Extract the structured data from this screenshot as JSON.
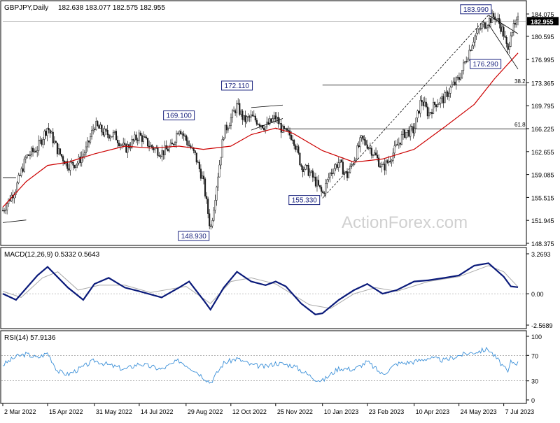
{
  "symbol_label": "GBPJPY,Daily",
  "ohlc_label": "182.638 183.077 182.575 182.955",
  "watermark": "ActionForex.com",
  "colors": {
    "candle": "#1a1a1a",
    "sma": "#cc0000",
    "macd": "#0a1a7a",
    "signal": "#aaaaaa",
    "rsi": "#3a8fd8",
    "label_border": "#1a237e",
    "label_text": "#1a237e"
  },
  "chart_data": [
    {
      "type": "candlestick",
      "panel": "price",
      "price_axis_ticks": [
        "184.075",
        "180.595",
        "176.995",
        "173.365",
        "169.795",
        "166.225",
        "162.655",
        "159.085",
        "155.515",
        "151.945",
        "148.375"
      ],
      "last_price": "182.955",
      "ylim": [
        148.375,
        184.075
      ],
      "close_path": [
        [
          "2 Mar 2022",
          153.5
        ],
        [
          "15 Mar 2022",
          157.0
        ],
        [
          "25 Mar 2022",
          161.8
        ],
        [
          "5 Apr 2022",
          163.2
        ],
        [
          "15 Apr 2022",
          166.5
        ],
        [
          "25 Apr 2022",
          162.8
        ],
        [
          "5 May 2022",
          160.5
        ],
        [
          "15 May 2022",
          161.0
        ],
        [
          "23 May 2022",
          163.0
        ],
        [
          "31 May 2022",
          166.8
        ],
        [
          "10 Jun 2022",
          165.5
        ],
        [
          "20 Jun 2022",
          165.2
        ],
        [
          "30 Jun 2022",
          163.0
        ],
        [
          "14 Jul 2022",
          165.2
        ],
        [
          "25 Jul 2022",
          163.5
        ],
        [
          "5 Aug 2022",
          162.5
        ],
        [
          "15 Aug 2022",
          163.4
        ],
        [
          "22 Aug 2022",
          166.5
        ],
        [
          "29 Aug 2022",
          164.5
        ],
        [
          "7 Sep 2022",
          162.0
        ],
        [
          "15 Sep 2022",
          158.0
        ],
        [
          "22 Sep 2022",
          150.5
        ],
        [
          "28 Sep 2022",
          157.5
        ],
        [
          "5 Oct 2022",
          165.5
        ],
        [
          "12 Oct 2022",
          167.8
        ],
        [
          "18 Oct 2022",
          169.8
        ],
        [
          "25 Oct 2022",
          167.5
        ],
        [
          "1 Nov 2022",
          168.0
        ],
        [
          "8 Nov 2022",
          167.3
        ],
        [
          "15 Nov 2022",
          166.5
        ],
        [
          "25 Nov 2022",
          168.0
        ],
        [
          "2 Dec 2022",
          165.8
        ],
        [
          "12 Dec 2022",
          165.0
        ],
        [
          "20 Dec 2022",
          160.5
        ],
        [
          "28 Dec 2022",
          159.5
        ],
        [
          "3 Jan 2023",
          158.0
        ],
        [
          "10 Jan 2023",
          156.0
        ],
        [
          "18 Jan 2023",
          159.5
        ],
        [
          "26 Jan 2023",
          161.0
        ],
        [
          "3 Feb 2023",
          158.8
        ],
        [
          "10 Feb 2023",
          161.5
        ],
        [
          "17 Feb 2023",
          164.5
        ],
        [
          "23 Feb 2023",
          163.8
        ],
        [
          "3 Mar 2023",
          162.0
        ],
        [
          "10 Mar 2023",
          160.0
        ],
        [
          "17 Mar 2023",
          161.5
        ],
        [
          "24 Mar 2023",
          163.5
        ],
        [
          "31 Mar 2023",
          165.5
        ],
        [
          "10 Apr 2023",
          166.0
        ],
        [
          "17 Apr 2023",
          170.8
        ],
        [
          "24 Apr 2023",
          168.5
        ],
        [
          "1 May 2023",
          170.2
        ],
        [
          "10 May 2023",
          171.0
        ],
        [
          "17 May 2023",
          172.8
        ],
        [
          "24 May 2023",
          174.0
        ],
        [
          "1 Jun 2023",
          177.5
        ],
        [
          "8 Jun 2023",
          180.5
        ],
        [
          "15 Jun 2023",
          182.0
        ],
        [
          "22 Jun 2023",
          183.0
        ],
        [
          "28 Jun 2023",
          183.8
        ],
        [
          "3 Jul 2023",
          182.5
        ],
        [
          "7 Jul 2023",
          181.0
        ],
        [
          "11 Jul 2023",
          178.0
        ],
        [
          "14 Jul 2023",
          181.5
        ],
        [
          "18 Jul 2023",
          182.0
        ],
        [
          "21 Jul 2023",
          182.955
        ]
      ],
      "sma_path": [
        [
          "2 Mar 2022",
          154.0
        ],
        [
          "25 Mar 2022",
          158.0
        ],
        [
          "15 Apr 2022",
          160.5
        ],
        [
          "5 May 2022",
          161.0
        ],
        [
          "31 May 2022",
          162.3
        ],
        [
          "30 Jun 2022",
          163.5
        ],
        [
          "25 Jul 2022",
          163.2
        ],
        [
          "22 Aug 2022",
          163.5
        ],
        [
          "15 Sep 2022",
          163.0
        ],
        [
          "12 Oct 2022",
          163.5
        ],
        [
          "1 Nov 2022",
          165.3
        ],
        [
          "25 Nov 2022",
          166.3
        ],
        [
          "12 Dec 2022",
          165.5
        ],
        [
          "10 Jan 2023",
          162.8
        ],
        [
          "10 Feb 2023",
          161.0
        ],
        [
          "10 Mar 2023",
          161.5
        ],
        [
          "10 Apr 2023",
          163.0
        ],
        [
          "10 May 2023",
          166.5
        ],
        [
          "8 Jun 2023",
          170.0
        ],
        [
          "28 Jun 2023",
          174.0
        ],
        [
          "21 Jul 2023",
          178.0
        ]
      ],
      "annotations": [
        {
          "label": "183.990",
          "date": "22 Jun 2023",
          "price": 183.99
        },
        {
          "label": "176.290",
          "date": "7 Jul 2023",
          "price": 176.29
        },
        {
          "label": "172.110",
          "date": "18 Oct 2022",
          "price": 172.11
        },
        {
          "label": "169.100",
          "date": "22 Aug 2022",
          "price": 169.1
        },
        {
          "label": "155.330",
          "date": "10 Jan 2023",
          "price": 155.33
        },
        {
          "label": "148.930",
          "date": "22 Sep 2022",
          "price": 148.93
        }
      ],
      "fib_levels": [
        {
          "label": "38.2",
          "price": 173.0,
          "from": "10 Jan 2023"
        },
        {
          "label": "61.8",
          "price": 166.2,
          "from": "25 Nov 2022"
        }
      ]
    },
    {
      "type": "line",
      "panel": "macd",
      "label": "MACD(12,26,9) 0.5332 0.5643",
      "axis_ticks": [
        "3.2693",
        "0.00",
        "-2.5689"
      ],
      "ylim": [
        -2.5689,
        3.2693
      ],
      "macd_path": [
        [
          "2 Mar 2022",
          0.0
        ],
        [
          "15 Mar 2022",
          -0.5
        ],
        [
          "5 Apr 2022",
          1.5
        ],
        [
          "15 Apr 2022",
          2.2
        ],
        [
          "5 May 2022",
          0.5
        ],
        [
          "20 May 2022",
          -0.5
        ],
        [
          "31 May 2022",
          0.8
        ],
        [
          "14 Jun 2022",
          1.3
        ],
        [
          "30 Jun 2022",
          0.5
        ],
        [
          "14 Jul 2022",
          0.2
        ],
        [
          "5 Aug 2022",
          -0.3
        ],
        [
          "22 Aug 2022",
          0.5
        ],
        [
          "1 Sep 2022",
          1.0
        ],
        [
          "15 Sep 2022",
          -0.5
        ],
        [
          "22 Sep 2022",
          -1.3
        ],
        [
          "5 Oct 2022",
          0.5
        ],
        [
          "18 Oct 2022",
          1.8
        ],
        [
          "1 Nov 2022",
          1.0
        ],
        [
          "15 Nov 2022",
          0.7
        ],
        [
          "25 Nov 2022",
          1.0
        ],
        [
          "5 Dec 2022",
          0.6
        ],
        [
          "20 Dec 2022",
          -0.8
        ],
        [
          "3 Jan 2023",
          -1.7
        ],
        [
          "10 Jan 2023",
          -1.6
        ],
        [
          "26 Jan 2023",
          -0.5
        ],
        [
          "10 Feb 2023",
          0.3
        ],
        [
          "23 Feb 2023",
          0.8
        ],
        [
          "10 Mar 2023",
          0.0
        ],
        [
          "24 Mar 2023",
          0.3
        ],
        [
          "10 Apr 2023",
          1.0
        ],
        [
          "24 Apr 2023",
          1.1
        ],
        [
          "10 May 2023",
          1.3
        ],
        [
          "24 May 2023",
          1.5
        ],
        [
          "8 Jun 2023",
          2.3
        ],
        [
          "22 Jun 2023",
          2.5
        ],
        [
          "7 Jul 2023",
          1.4
        ],
        [
          "14 Jul 2023",
          0.6
        ],
        [
          "21 Jul 2023",
          0.5332
        ]
      ],
      "signal_path": [
        [
          "2 Mar 2022",
          0.2
        ],
        [
          "20 Mar 2022",
          -0.3
        ],
        [
          "10 Apr 2022",
          1.3
        ],
        [
          "25 Apr 2022",
          1.8
        ],
        [
          "15 May 2022",
          0.3
        ],
        [
          "5 Jun 2022",
          0.7
        ],
        [
          "30 Jun 2022",
          0.7
        ],
        [
          "25 Jul 2022",
          0.1
        ],
        [
          "29 Aug 2022",
          0.6
        ],
        [
          "22 Sep 2022",
          -0.8
        ],
        [
          "12 Oct 2022",
          1.0
        ],
        [
          "1 Nov 2022",
          1.3
        ],
        [
          "25 Nov 2022",
          0.8
        ],
        [
          "28 Dec 2022",
          -0.9
        ],
        [
          "18 Jan 2023",
          -1.2
        ],
        [
          "10 Feb 2023",
          0.0
        ],
        [
          "3 Mar 2023",
          0.5
        ],
        [
          "24 Mar 2023",
          0.2
        ],
        [
          "24 Apr 2023",
          1.0
        ],
        [
          "24 May 2023",
          1.4
        ],
        [
          "22 Jun 2023",
          2.3
        ],
        [
          "7 Jul 2023",
          1.8
        ],
        [
          "21 Jul 2023",
          0.5643
        ]
      ]
    },
    {
      "type": "line",
      "panel": "rsi",
      "label": "RSI(14) 57.9136",
      "axis_ticks": [
        "100",
        "70",
        "30",
        "0"
      ],
      "ylim": [
        0,
        100
      ],
      "rsi_path": [
        [
          "2 Mar 2022",
          55
        ],
        [
          "15 Mar 2022",
          68
        ],
        [
          "25 Mar 2022",
          72
        ],
        [
          "5 Apr 2022",
          66
        ],
        [
          "15 Apr 2022",
          74
        ],
        [
          "25 Apr 2022",
          45
        ],
        [
          "5 May 2022",
          40
        ],
        [
          "20 May 2022",
          52
        ],
        [
          "31 May 2022",
          62
        ],
        [
          "14 Jun 2022",
          55
        ],
        [
          "30 Jun 2022",
          48
        ],
        [
          "14 Jul 2022",
          57
        ],
        [
          "5 Aug 2022",
          48
        ],
        [
          "22 Aug 2022",
          62
        ],
        [
          "7 Sep 2022",
          46
        ],
        [
          "22 Sep 2022",
          27
        ],
        [
          "5 Oct 2022",
          58
        ],
        [
          "18 Oct 2022",
          65
        ],
        [
          "1 Nov 2022",
          55
        ],
        [
          "15 Nov 2022",
          52
        ],
        [
          "25 Nov 2022",
          58
        ],
        [
          "12 Dec 2022",
          54
        ],
        [
          "3 Jan 2023",
          33
        ],
        [
          "10 Jan 2023",
          30
        ],
        [
          "26 Jan 2023",
          50
        ],
        [
          "10 Feb 2023",
          48
        ],
        [
          "23 Feb 2023",
          60
        ],
        [
          "10 Mar 2023",
          40
        ],
        [
          "24 Mar 2023",
          57
        ],
        [
          "10 Apr 2023",
          60
        ],
        [
          "24 Apr 2023",
          66
        ],
        [
          "10 May 2023",
          62
        ],
        [
          "24 May 2023",
          70
        ],
        [
          "8 Jun 2023",
          75
        ],
        [
          "22 Jun 2023",
          80
        ],
        [
          "7 Jul 2023",
          52
        ],
        [
          "11 Jul 2023",
          42
        ],
        [
          "14 Jul 2023",
          60
        ],
        [
          "21 Jul 2023",
          57.9136
        ]
      ]
    }
  ],
  "x_axis_ticks": [
    "2 Mar 2022",
    "15 Apr 2022",
    "31 May 2022",
    "14 Jul 2022",
    "29 Aug 2022",
    "12 Oct 2022",
    "25 Nov 2022",
    "10 Jan 2023",
    "23 Feb 2023",
    "10 Apr 2023",
    "24 May 2023",
    "7 Jul 2023"
  ]
}
